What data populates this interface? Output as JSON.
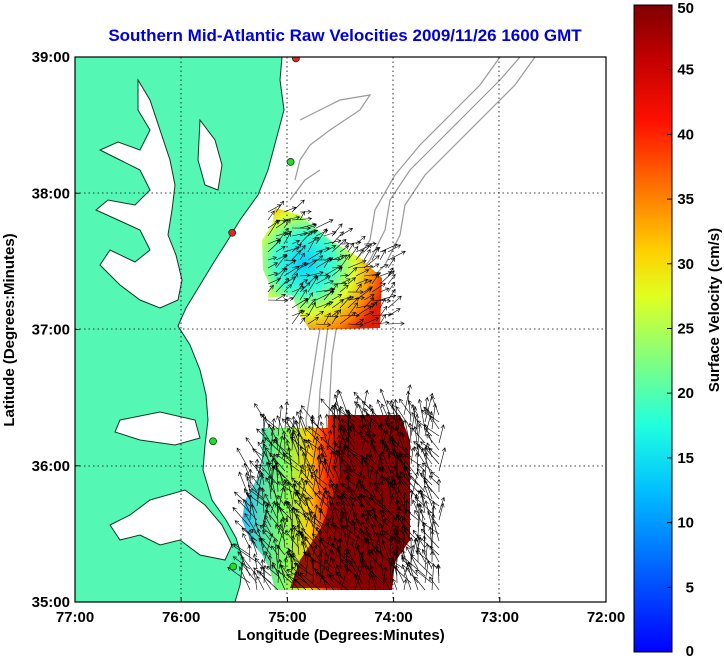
{
  "title": "Southern Mid-Atlantic Raw Velocities 2009/11/26 1600 GMT",
  "colors": {
    "title": "#0000dd",
    "land": "#55f7b4",
    "coast": "#0a3a22",
    "contour": "#9a9a9a",
    "grid": "#000000",
    "station_green": "#22dd22",
    "station_red": "#ee2222"
  },
  "map": {
    "xlabel": "Longitude (Degrees:Minutes)",
    "ylabel": "Latitude (Degrees:Minutes)",
    "x_ticks": [
      "77:00",
      "76:00",
      "75:00",
      "74:00",
      "73:00",
      "72:00"
    ],
    "y_ticks": [
      "39:00",
      "38:00",
      "37:00",
      "36:00",
      "35:00"
    ],
    "lon_range": [
      -77,
      -72
    ],
    "lat_range": [
      35,
      39
    ],
    "grid": true
  },
  "colorbar": {
    "label": "Surface Velocity (cm/s)",
    "ticks": [
      "50",
      "45",
      "40",
      "35",
      "30",
      "25",
      "20",
      "15",
      "10",
      "5",
      "0"
    ],
    "range": [
      0,
      50
    ],
    "colormap": "jet"
  },
  "stations": [
    {
      "name": "green-1",
      "lon": -74.97,
      "lat": 38.23,
      "color": "green"
    },
    {
      "name": "red-1",
      "lon": -75.52,
      "lat": 37.71,
      "color": "red"
    },
    {
      "name": "green-2",
      "lon": -75.7,
      "lat": 36.18,
      "color": "green"
    },
    {
      "name": "green-3",
      "lon": -75.51,
      "lat": 35.26,
      "color": "green"
    },
    {
      "name": "red-2",
      "lon": -74.92,
      "lat": 38.99,
      "color": "red"
    }
  ]
}
